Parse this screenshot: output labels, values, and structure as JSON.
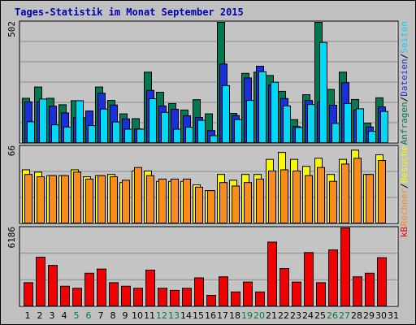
{
  "title": "Tages-Statistik im Monat September 2015",
  "colors": {
    "background": "#c0c0c0",
    "plot_background": "#c4c4c4",
    "gridline": "#8a8a8a",
    "title": "#0000b0",
    "weekday": "#000000",
    "weekend": "#008040",
    "anfragen": "#007850",
    "dateien": "#1a2fdc",
    "seiten": "#00d8f8",
    "besuche": "#f8f800",
    "rechner": "#f88c1c",
    "kb": "#f00000"
  },
  "chart_data": [
    {
      "type": "bar",
      "name": "hits-files-pages",
      "ymax_label": "502",
      "ylim": [
        0,
        502
      ],
      "grid": true,
      "right_labels": [
        {
          "text": "Anfragen",
          "color": "#007850"
        },
        {
          "text": "/",
          "color": "#000000"
        },
        {
          "text": "Dateien",
          "color": "#1a2fdc"
        },
        {
          "text": "/",
          "color": "#000000"
        },
        {
          "text": "Seiten",
          "color": "#00d8f8"
        }
      ],
      "categories": [
        "1",
        "2",
        "3",
        "4",
        "5",
        "6",
        "7",
        "8",
        "9",
        "10",
        "11",
        "12",
        "13",
        "14",
        "15",
        "16",
        "17",
        "18",
        "19",
        "20",
        "21",
        "22",
        "23",
        "24",
        "25",
        "26",
        "27",
        "28",
        "29",
        "30",
        "31"
      ],
      "weekend_days": [
        "5",
        "6",
        "12",
        "13",
        "19",
        "20",
        "26",
        "27"
      ],
      "series": [
        {
          "name": "Anfragen",
          "color": "#007850",
          "values": [
            185,
            232,
            185,
            158,
            175,
            104,
            232,
            176,
            120,
            100,
            294,
            210,
            163,
            136,
            179,
            120,
            502,
            122,
            289,
            294,
            280,
            214,
            96,
            200,
            502,
            222,
            294,
            180,
            81,
            187,
            0
          ]
        },
        {
          "name": "Dateien",
          "color": "#1a2fdc",
          "values": [
            170,
            170,
            152,
            124,
            104,
            132,
            206,
            157,
            99,
            57,
            218,
            153,
            139,
            112,
            105,
            50,
            328,
            113,
            270,
            319,
            240,
            184,
            67,
            176,
            170,
            156,
            250,
            136,
            65,
            149,
            0
          ]
        },
        {
          "name": "Seiten",
          "color": "#00d8f8",
          "values": [
            87,
            182,
            74,
            65,
            175,
            71,
            140,
            86,
            56,
            56,
            183,
            126,
            56,
            64,
            93,
            29,
            238,
            96,
            176,
            296,
            252,
            153,
            63,
            159,
            418,
            80,
            163,
            141,
            47,
            130,
            0
          ]
        }
      ]
    },
    {
      "type": "bar",
      "name": "visits-sites",
      "ymax_label": "66",
      "ylim": [
        0,
        66
      ],
      "grid": true,
      "right_labels": [
        {
          "text": "Rechner",
          "color": "#f88c1c"
        },
        {
          "text": "/",
          "color": "#000000"
        },
        {
          "text": "Besuche",
          "color": "#f8f800"
        }
      ],
      "categories": [
        "1",
        "2",
        "3",
        "4",
        "5",
        "6",
        "7",
        "8",
        "9",
        "10",
        "11",
        "12",
        "13",
        "14",
        "15",
        "16",
        "17",
        "18",
        "19",
        "20",
        "21",
        "22",
        "23",
        "24",
        "25",
        "26",
        "27",
        "28",
        "29",
        "30",
        "31"
      ],
      "series": [
        {
          "name": "Besuche",
          "color": "#f8f800",
          "values": [
            46,
            44,
            41,
            41,
            46,
            40,
            41,
            42,
            35,
            45,
            45,
            36,
            36,
            36,
            33,
            28,
            42,
            37,
            42,
            42,
            55,
            61,
            55,
            49,
            56,
            42,
            55,
            63,
            42,
            59,
            0
          ]
        },
        {
          "name": "Rechner",
          "color": "#f88c1c",
          "values": [
            42,
            40,
            41,
            41,
            44,
            38,
            41,
            40,
            37,
            48,
            41,
            38,
            38,
            38,
            31,
            28,
            35,
            32,
            35,
            38,
            45,
            46,
            45,
            41,
            48,
            36,
            51,
            56,
            42,
            54,
            0
          ]
        }
      ]
    },
    {
      "type": "bar",
      "name": "kb",
      "ymax_label": "6186",
      "ylim": [
        0,
        6186
      ],
      "grid": true,
      "right_labels": [
        {
          "text": "kB",
          "color": "#f00000"
        }
      ],
      "categories": [
        "1",
        "2",
        "3",
        "4",
        "5",
        "6",
        "7",
        "8",
        "9",
        "10",
        "11",
        "12",
        "13",
        "14",
        "15",
        "16",
        "17",
        "18",
        "19",
        "20",
        "21",
        "22",
        "23",
        "24",
        "25",
        "26",
        "27",
        "28",
        "29",
        "30",
        "31"
      ],
      "series": [
        {
          "name": "kB",
          "color": "#f00000",
          "values": [
            1842,
            3864,
            3212,
            1562,
            1397,
            2591,
            2921,
            1842,
            1562,
            1397,
            2840,
            1397,
            1232,
            1397,
            2222,
            839,
            2304,
            1109,
            1891,
            1109,
            5061,
            2962,
            1891,
            4232,
            1842,
            4438,
            6186,
            2304,
            2591,
            3823,
            0
          ]
        }
      ]
    }
  ]
}
